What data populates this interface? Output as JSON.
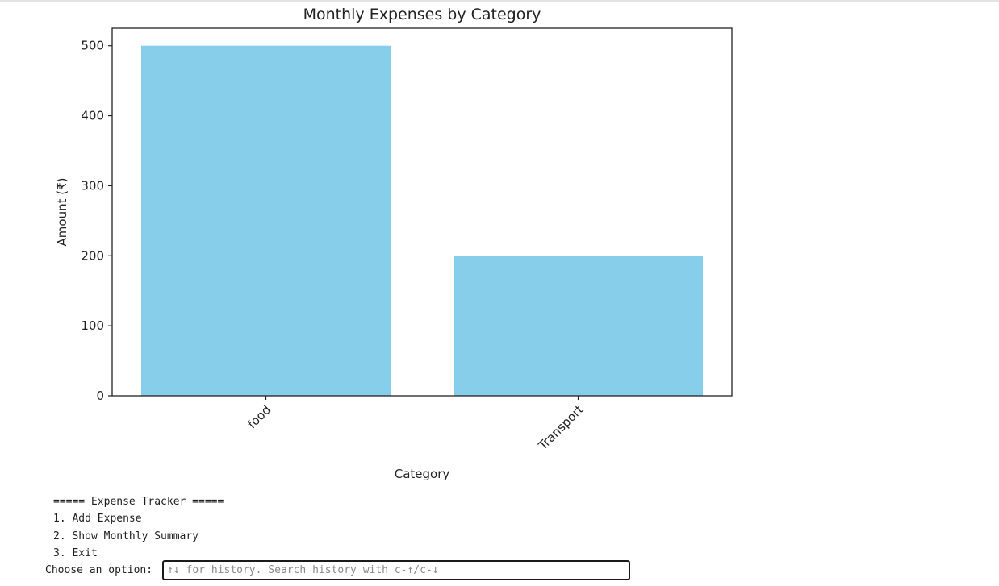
{
  "chart_data": {
    "type": "bar",
    "title": "Monthly Expenses by Category",
    "xlabel": "Category",
    "ylabel": "Amount (₹)",
    "categories": [
      "food",
      "Transport"
    ],
    "values": [
      500,
      200
    ],
    "ylim": [
      0,
      525
    ],
    "yticks": [
      0,
      100,
      200,
      300,
      400,
      500
    ],
    "bar_color": "#87ceeb",
    "grid": false,
    "xtick_rotation": 45
  },
  "console": {
    "header": "===== Expense Tracker =====",
    "options": [
      "1. Add Expense",
      "2. Show Monthly Summary",
      "3. Exit"
    ],
    "prompt": "Choose an option:",
    "input_value": "",
    "input_placeholder": "↑↓ for history. Search history with c-↑/c-↓"
  }
}
